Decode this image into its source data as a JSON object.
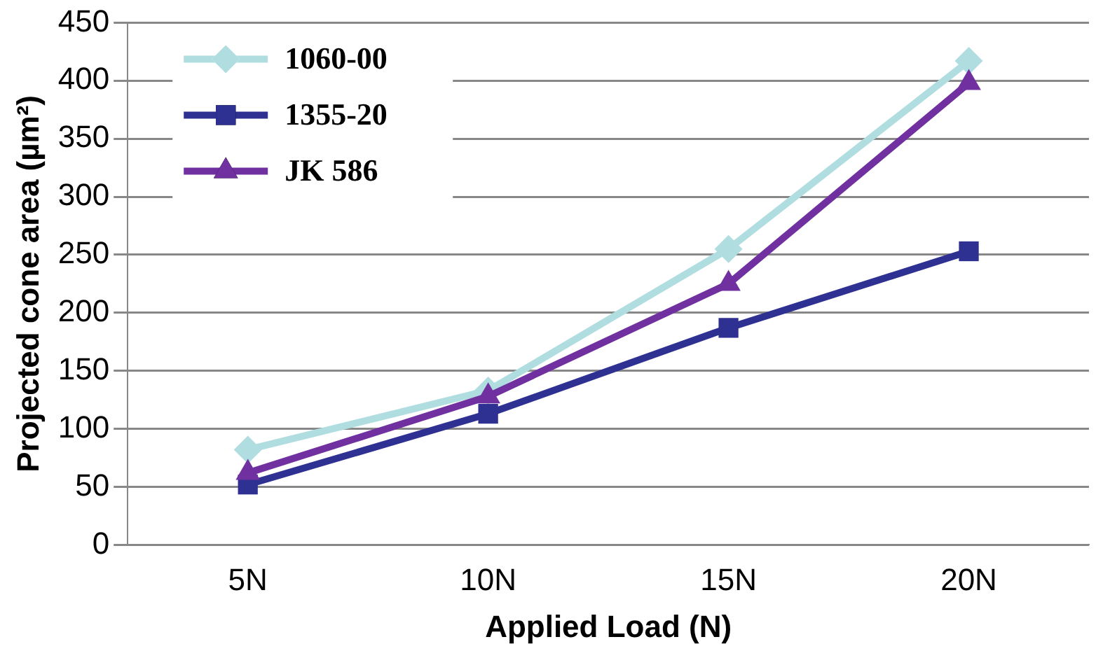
{
  "chart_data": {
    "type": "line",
    "xlabel": "Applied Load (N)",
    "ylabel": "Projected cone area (µm²)",
    "categories": [
      "5N",
      "10N",
      "15N",
      "20N"
    ],
    "series": [
      {
        "name": "1060-00",
        "color": "#b0dde0",
        "marker": "diamond",
        "values": [
          82,
          133,
          255,
          417
        ]
      },
      {
        "name": "1355-20",
        "color": "#2e3192",
        "marker": "square",
        "values": [
          52,
          113,
          187,
          253
        ]
      },
      {
        "name": "JK 586",
        "color": "#7030a0",
        "marker": "triangle",
        "values": [
          62,
          128,
          225,
          398
        ]
      }
    ],
    "ylim": [
      0,
      450
    ],
    "yticks": [
      0,
      50,
      100,
      150,
      200,
      250,
      300,
      350,
      400,
      450
    ],
    "grid": "y",
    "legend": "top left",
    "line_style": "solid"
  }
}
